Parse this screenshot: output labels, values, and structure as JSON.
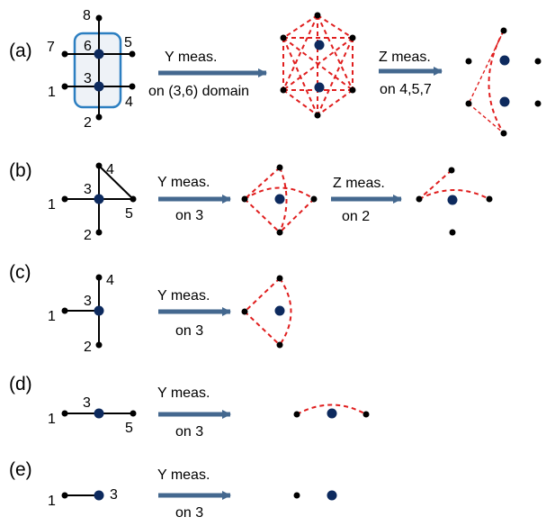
{
  "colors": {
    "node": "#0d2a5e",
    "arrow": "#44688f",
    "dash": "#e01e1e",
    "domain": "#2c7fc1"
  },
  "panels": {
    "a": {
      "label": "(a)",
      "nodes": [
        "8",
        "7",
        "6",
        "5",
        "3",
        "1",
        "4",
        "2"
      ],
      "arrow1": [
        "Y meas.",
        "on (3,6) domain"
      ],
      "arrow2": [
        "Z meas.",
        "on 4,5,7"
      ]
    },
    "b": {
      "label": "(b)",
      "nodes": [
        "4",
        "3",
        "1",
        "5",
        "2"
      ],
      "arrow1": [
        "Y meas.",
        "on 3"
      ],
      "arrow2": [
        "Z meas.",
        "on 2"
      ]
    },
    "c": {
      "label": "(c)",
      "nodes": [
        "4",
        "3",
        "1",
        "2"
      ],
      "arrow1": [
        "Y meas.",
        "on 3"
      ]
    },
    "d": {
      "label": "(d)",
      "nodes": [
        "3",
        "1",
        "5"
      ],
      "arrow1": [
        "Y meas.",
        "on 3"
      ]
    },
    "e": {
      "label": "(e)",
      "nodes": [
        "1",
        "3"
      ],
      "arrow1": [
        "Y meas.",
        "on 3"
      ]
    }
  }
}
